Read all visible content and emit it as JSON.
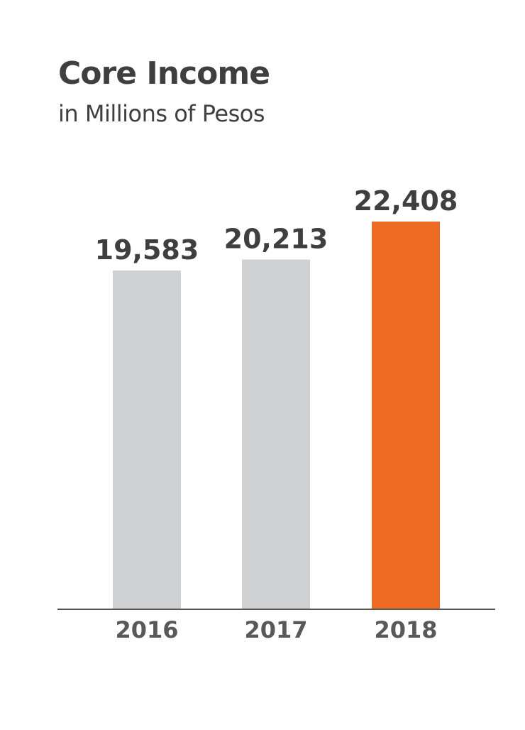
{
  "title": "Core Income",
  "subtitle": "in Millions of Pesos",
  "colors": {
    "bar_default": "#d0d1d3",
    "bar_highlight": "#ee6b24",
    "axis": "#555555",
    "text": "#3f3f3f"
  },
  "chart_data": {
    "type": "bar",
    "title": "Core Income",
    "subtitle": "in Millions of Pesos",
    "categories": [
      "2016",
      "2017",
      "2018"
    ],
    "values": [
      19583,
      20213,
      22408
    ],
    "value_labels": [
      "19,583",
      "20,213",
      "22,408"
    ],
    "highlight": "2018",
    "xlabel": "",
    "ylabel": "",
    "ylim": [
      0,
      22408
    ],
    "grid": false,
    "legend": "none"
  }
}
